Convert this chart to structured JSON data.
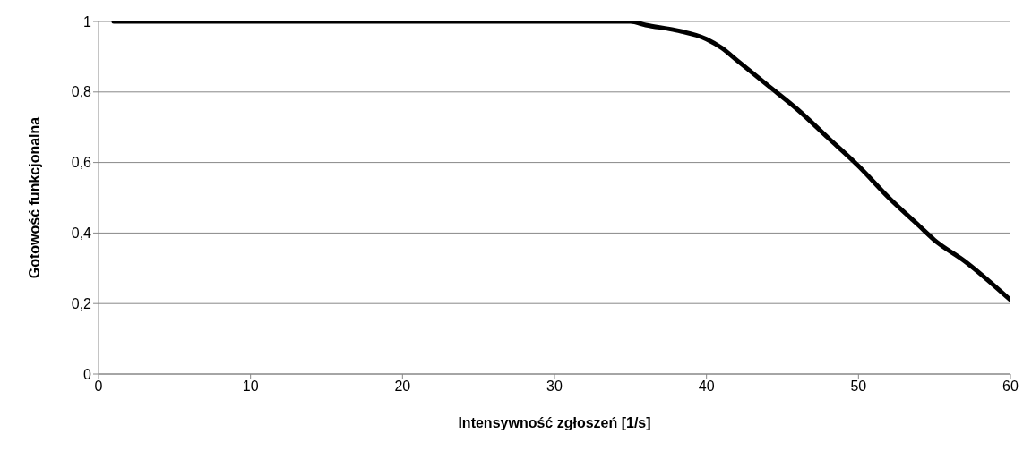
{
  "chart_data": {
    "type": "line",
    "xlabel": "Intensywność zgłoszeń [1/s]",
    "ylabel": "Gotowość funkcjonalna",
    "x": [
      1,
      5,
      10,
      15,
      20,
      25,
      30,
      32,
      33.5,
      35,
      36,
      38,
      40,
      41,
      42,
      44,
      46,
      48,
      50,
      52,
      54,
      55,
      57,
      60
    ],
    "series": [
      {
        "color": "#000000",
        "values": [
          1,
          1,
          1,
          1,
          1,
          1,
          1,
          1,
          1,
          1,
          0.99,
          0.975,
          0.95,
          0.925,
          0.89,
          0.82,
          0.75,
          0.67,
          0.59,
          0.5,
          0.42,
          0.38,
          0.32,
          0.21
        ]
      }
    ],
    "xlim": [
      0,
      60
    ],
    "xticks": [
      0,
      10,
      20,
      30,
      40,
      50,
      60
    ],
    "ylim": [
      0,
      1
    ],
    "yticks": [
      0,
      {
        "value": 0.2,
        "label": "0,2"
      },
      {
        "value": 0.4,
        "label": "0,4"
      },
      {
        "value": 0.6,
        "label": "0,6"
      },
      {
        "value": 0.8,
        "label": "0,8"
      },
      1
    ],
    "grid": "y",
    "legend": false,
    "marker": "none",
    "line_style": "solid"
  }
}
